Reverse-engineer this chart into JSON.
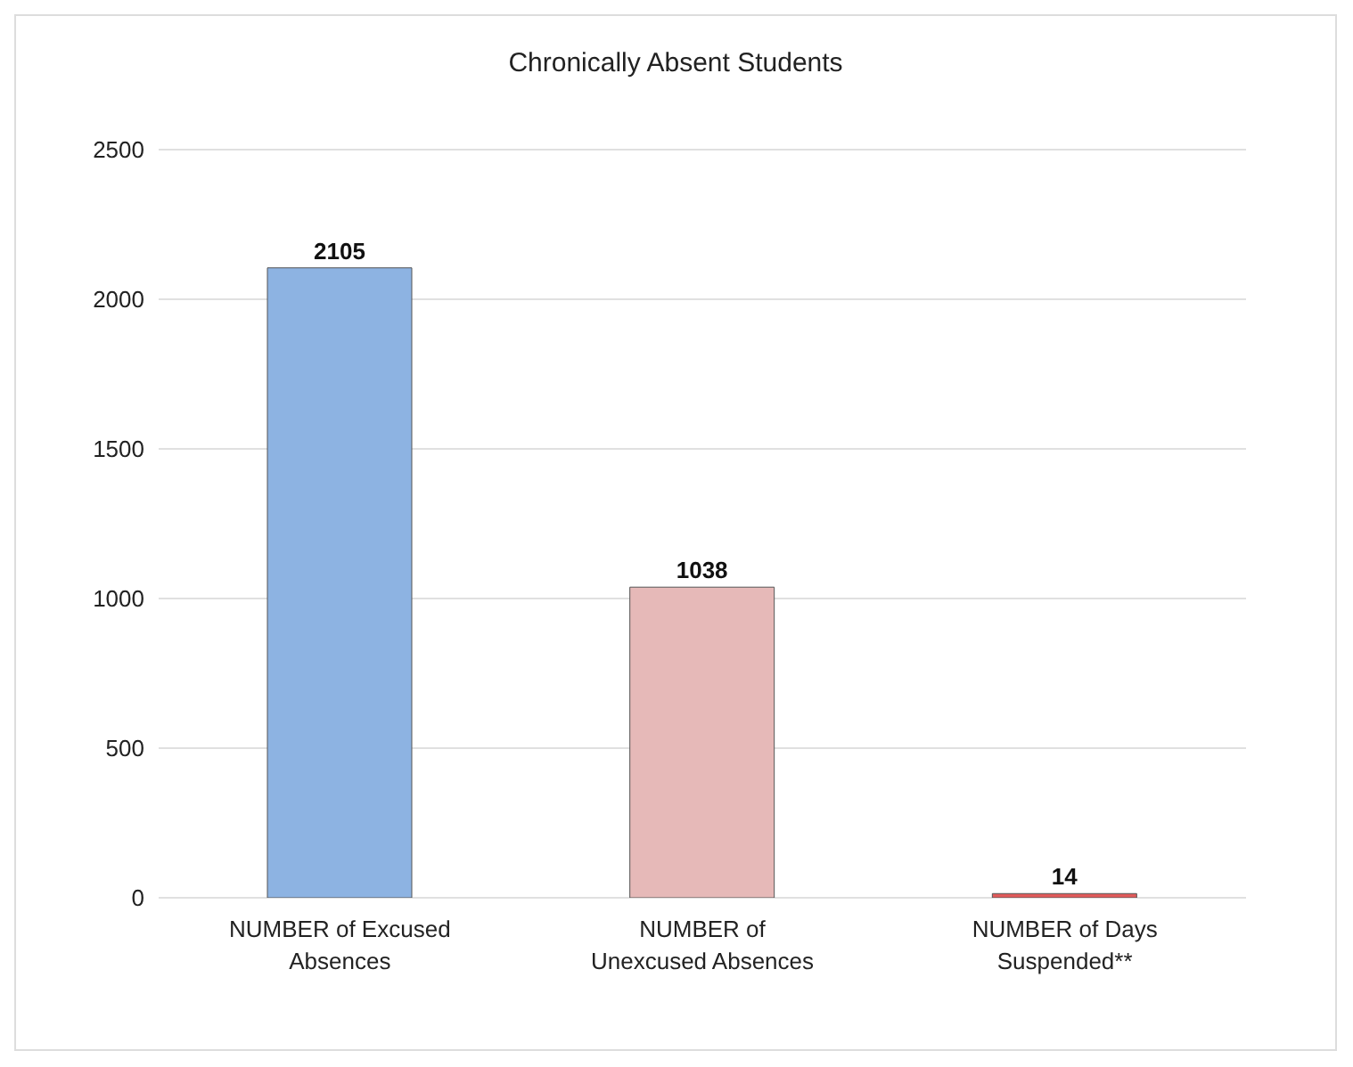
{
  "chart_data": {
    "type": "bar",
    "title": "Chronically Absent Students",
    "categories": [
      "NUMBER of Excused Absences",
      "NUMBER of Unexcused Absences",
      "NUMBER of Days Suspended**"
    ],
    "values": [
      2105,
      1038,
      14
    ],
    "colors": [
      "#8db3e2",
      "#e6b9b8",
      "#e05a5a"
    ],
    "ylim": [
      0,
      2500
    ],
    "yticks": [
      0,
      500,
      1000,
      1500,
      2000,
      2500
    ],
    "grid": "y",
    "data_labels": true
  }
}
